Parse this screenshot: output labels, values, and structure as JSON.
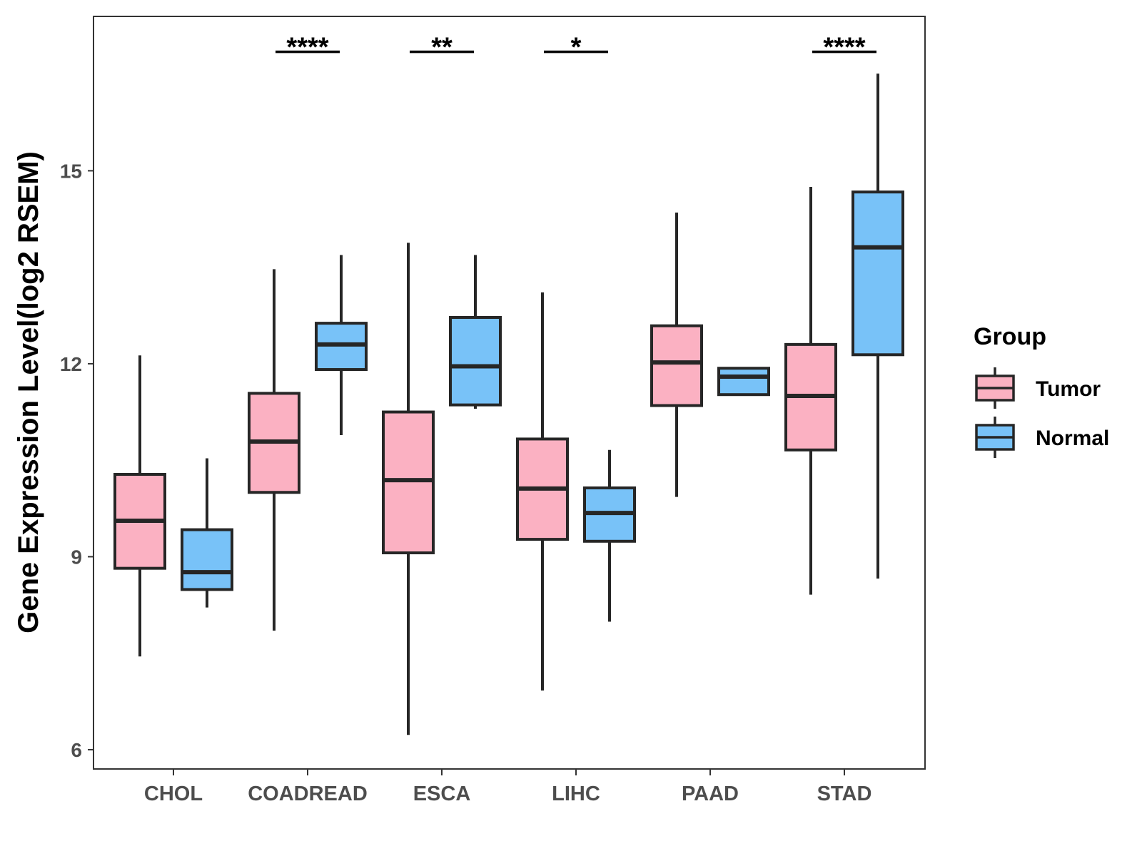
{
  "chart_data": {
    "type": "boxplot",
    "title": "",
    "xlabel": "",
    "ylabel": "Gene Expression Level(log2 RSEM)",
    "ylim": [
      5.7,
      17.4
    ],
    "yticks": [
      6,
      9,
      12,
      15
    ],
    "categories": [
      "CHOL",
      "COADREAD",
      "ESCA",
      "LIHC",
      "PAAD",
      "STAD"
    ],
    "legend": {
      "title": "Group",
      "position": "right",
      "items": [
        {
          "name": "Tumor",
          "color": "#FBB1C2"
        },
        {
          "name": "Normal",
          "color": "#78C2F8"
        }
      ]
    },
    "series": [
      {
        "name": "Tumor",
        "color": "#FBB1C2",
        "boxes": [
          {
            "category": "CHOL",
            "whisker_low": 7.45,
            "q1": 8.82,
            "median": 9.56,
            "q3": 10.28,
            "whisker_high": 12.13
          },
          {
            "category": "COADREAD",
            "whisker_low": 7.85,
            "q1": 10.0,
            "median": 10.79,
            "q3": 11.54,
            "whisker_high": 13.47
          },
          {
            "category": "ESCA",
            "whisker_low": 6.23,
            "q1": 9.06,
            "median": 10.19,
            "q3": 11.25,
            "whisker_high": 13.88
          },
          {
            "category": "LIHC",
            "whisker_low": 6.92,
            "q1": 9.27,
            "median": 10.06,
            "q3": 10.83,
            "whisker_high": 13.11
          },
          {
            "category": "PAAD",
            "whisker_low": 9.93,
            "q1": 11.35,
            "median": 12.02,
            "q3": 12.59,
            "whisker_high": 14.35
          },
          {
            "category": "STAD",
            "whisker_low": 8.41,
            "q1": 10.66,
            "median": 11.5,
            "q3": 12.3,
            "whisker_high": 14.75
          }
        ]
      },
      {
        "name": "Normal",
        "color": "#78C2F8",
        "boxes": [
          {
            "category": "CHOL",
            "whisker_low": 8.21,
            "q1": 8.49,
            "median": 8.76,
            "q3": 9.42,
            "whisker_high": 10.53
          },
          {
            "category": "COADREAD",
            "whisker_low": 10.89,
            "q1": 11.91,
            "median": 12.3,
            "q3": 12.63,
            "whisker_high": 13.69
          },
          {
            "category": "ESCA",
            "whisker_low": 11.3,
            "q1": 11.36,
            "median": 11.96,
            "q3": 12.72,
            "whisker_high": 13.69
          },
          {
            "category": "LIHC",
            "whisker_low": 7.99,
            "q1": 9.24,
            "median": 9.68,
            "q3": 10.07,
            "whisker_high": 10.66
          },
          {
            "category": "PAAD",
            "whisker_low": 11.52,
            "q1": 11.52,
            "median": 11.8,
            "q3": 11.93,
            "whisker_high": 11.93
          },
          {
            "category": "STAD",
            "whisker_low": 8.66,
            "q1": 12.14,
            "median": 13.81,
            "q3": 14.67,
            "whisker_high": 16.51
          }
        ]
      }
    ],
    "significance": [
      {
        "category": "COADREAD",
        "label": "****",
        "level": 16.85
      },
      {
        "category": "ESCA",
        "label": "**",
        "level": 16.85
      },
      {
        "category": "LIHC",
        "label": "*",
        "level": 16.85
      },
      {
        "category": "STAD",
        "label": "****",
        "level": 16.85
      }
    ]
  }
}
